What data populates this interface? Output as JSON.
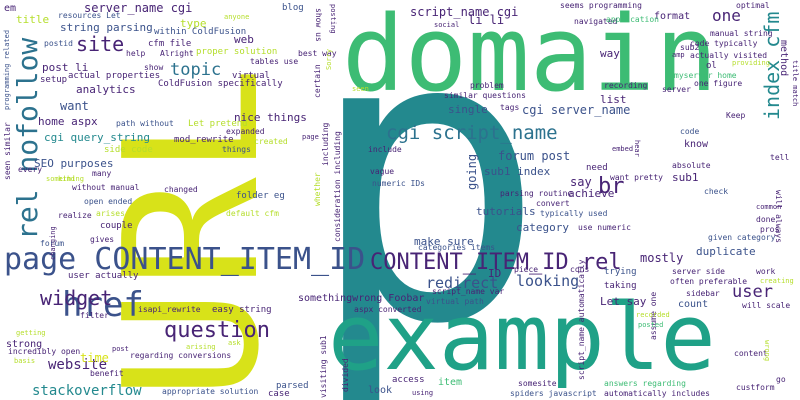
{
  "palette": {
    "background": "#ffffff",
    "yellow": "#d8e219",
    "teal": "#23898e",
    "green": "#3dbc74",
    "navy": "#3b528b",
    "purple": "#482475",
    "olive": "#b5de2b",
    "cyan": "#1fa187",
    "blue": "#2c728e",
    "violet": "#440154"
  },
  "words": [
    {
      "text": "p"
    },
    {
      "text": "URL"
    },
    {
      "text": "domain"
    },
    {
      "text": "example"
    },
    {
      "text": "page CONTENT_ITEM_ID"
    },
    {
      "text": "CONTENT_ITEM_ID rel"
    },
    {
      "text": "rel nofollow"
    },
    {
      "text": "href"
    },
    {
      "text": "question"
    },
    {
      "text": "widget"
    },
    {
      "text": "site"
    },
    {
      "text": "topic"
    },
    {
      "text": "cgi script_name"
    },
    {
      "text": "index cfm"
    },
    {
      "text": "user"
    },
    {
      "text": "br"
    },
    {
      "text": "redirect"
    },
    {
      "text": "looking"
    },
    {
      "text": "one"
    },
    {
      "text": "website"
    },
    {
      "text": "stackoverflow"
    },
    {
      "text": "server_name cgi"
    },
    {
      "text": "script_name cgi"
    },
    {
      "text": "string parsing"
    },
    {
      "text": "post li"
    },
    {
      "text": "analytics"
    },
    {
      "text": "want"
    },
    {
      "text": "home aspx"
    },
    {
      "text": "cgi query_string"
    },
    {
      "text": "SEO purposes"
    },
    {
      "text": "li li"
    },
    {
      "text": "cgi server_name"
    },
    {
      "text": "forum post"
    },
    {
      "text": "sub1 index"
    },
    {
      "text": "say"
    },
    {
      "text": "going"
    },
    {
      "text": "mostly"
    },
    {
      "text": "duplicate"
    },
    {
      "text": "make sure"
    },
    {
      "text": "category"
    },
    {
      "text": "achieve"
    },
    {
      "text": "sub1"
    },
    {
      "text": "tutorials"
    },
    {
      "text": "Let say"
    },
    {
      "text": "count"
    },
    {
      "text": "somethingwrong Foobar"
    },
    {
      "text": "ID"
    },
    {
      "text": "list"
    },
    {
      "text": "single"
    },
    {
      "text": "know"
    },
    {
      "text": "format"
    },
    {
      "text": "way"
    },
    {
      "text": "method"
    },
    {
      "text": "nice things"
    },
    {
      "text": "type"
    },
    {
      "text": "web"
    },
    {
      "text": "title"
    },
    {
      "text": "em"
    },
    {
      "text": "blog"
    },
    {
      "text": "Let pretend"
    },
    {
      "text": "time"
    },
    {
      "text": "user actually"
    },
    {
      "text": "strong"
    },
    {
      "text": "item"
    },
    {
      "text": "look"
    },
    {
      "text": "access"
    },
    {
      "text": "ColdFusion specifically"
    },
    {
      "text": "within ColdFusion"
    },
    {
      "text": "cfm file"
    },
    {
      "text": "proper solution"
    },
    {
      "text": "actual properties"
    },
    {
      "text": "setup"
    },
    {
      "text": "resources Let"
    },
    {
      "text": "postid"
    },
    {
      "text": "show"
    },
    {
      "text": "tables use"
    },
    {
      "text": "virtual"
    },
    {
      "text": "path without"
    },
    {
      "text": "mod_rewrite"
    },
    {
      "text": "side code"
    },
    {
      "text": "without manual"
    },
    {
      "text": "open ended"
    },
    {
      "text": "couple"
    },
    {
      "text": "folder eg"
    },
    {
      "text": "default cfm"
    },
    {
      "text": "changed"
    },
    {
      "text": "easy string"
    },
    {
      "text": "isapi_rewrite"
    },
    {
      "text": "filter"
    },
    {
      "text": "incredibly open"
    },
    {
      "text": "regarding conversions"
    },
    {
      "text": "benefit"
    },
    {
      "text": "appropriate solution"
    },
    {
      "text": "parsed"
    },
    {
      "text": "case"
    },
    {
      "text": "aspx converted"
    },
    {
      "text": "virtual path"
    },
    {
      "text": "script_name var"
    },
    {
      "text": "categories items"
    },
    {
      "text": "include"
    },
    {
      "text": "vague"
    },
    {
      "text": "numeric IDs"
    },
    {
      "text": "parsing routine"
    },
    {
      "text": "convert"
    },
    {
      "text": "typically used"
    },
    {
      "text": "use numeric"
    },
    {
      "text": "want pretty"
    },
    {
      "text": "need"
    },
    {
      "text": "piece"
    },
    {
      "text": "cons"
    },
    {
      "text": "trying"
    },
    {
      "text": "taking"
    },
    {
      "text": "somesite"
    },
    {
      "text": "spiders javascript"
    },
    {
      "text": "answers regarding"
    },
    {
      "text": "automatically includes"
    },
    {
      "text": "custform"
    },
    {
      "text": "server side"
    },
    {
      "text": "often preferable"
    },
    {
      "text": "sidebar"
    },
    {
      "text": "work"
    },
    {
      "text": "given category"
    },
    {
      "text": "will always"
    },
    {
      "text": "absolute"
    },
    {
      "text": "check"
    },
    {
      "text": "done"
    },
    {
      "text": "pros"
    },
    {
      "text": "common"
    },
    {
      "text": "tell"
    },
    {
      "text": "code"
    },
    {
      "text": "Keep"
    },
    {
      "text": "seems programming"
    },
    {
      "text": "navigated"
    },
    {
      "text": "application"
    },
    {
      "text": "code typically"
    },
    {
      "text": "actually visited"
    },
    {
      "text": "manual string"
    },
    {
      "text": "myserver home"
    },
    {
      "text": "one figure"
    },
    {
      "text": "optimal"
    },
    {
      "text": "sub2"
    },
    {
      "text": "title match"
    },
    {
      "text": "server"
    },
    {
      "text": "recording"
    },
    {
      "text": "problem"
    },
    {
      "text": "similar questions"
    },
    {
      "text": "tags"
    },
    {
      "text": "best way"
    },
    {
      "text": "show us"
    },
    {
      "text": "certain"
    },
    {
      "text": "including"
    },
    {
      "text": "consideration including"
    },
    {
      "text": "whether"
    },
    {
      "text": "visiting sub1"
    },
    {
      "text": "divided"
    },
    {
      "text": "seen similar"
    },
    {
      "text": "programming related"
    },
    {
      "text": "every"
    },
    {
      "text": "realize"
    },
    {
      "text": "arises"
    },
    {
      "text": "many"
    },
    {
      "text": "gives"
    },
    {
      "text": "forum"
    },
    {
      "text": "help"
    },
    {
      "text": "Alright"
    },
    {
      "text": "expanded"
    },
    {
      "text": "created"
    },
    {
      "text": "things"
    },
    {
      "text": "script_name automatically"
    },
    {
      "text": "assume one"
    },
    {
      "text": "will scale"
    },
    {
      "text": "content"
    },
    {
      "text": "wrong"
    },
    {
      "text": "go"
    },
    {
      "text": "ol"
    },
    {
      "text": "anyone"
    },
    {
      "text": "social"
    },
    {
      "text": "posting"
    },
    {
      "text": "amp"
    },
    {
      "text": "page"
    },
    {
      "text": "using"
    },
    {
      "text": "posted"
    },
    {
      "text": "recorded"
    },
    {
      "text": "embed"
    },
    {
      "text": "hear"
    },
    {
      "text": "creating"
    },
    {
      "text": "getting"
    },
    {
      "text": "basis"
    },
    {
      "text": "something"
    },
    {
      "text": "arising"
    },
    {
      "text": "ask"
    },
    {
      "text": "changing"
    },
    {
      "text": "providing"
    },
    {
      "text": "post"
    },
    {
      "text": "seen"
    },
    {
      "text": "kind"
    },
    {
      "text": "Sorry"
    }
  ]
}
